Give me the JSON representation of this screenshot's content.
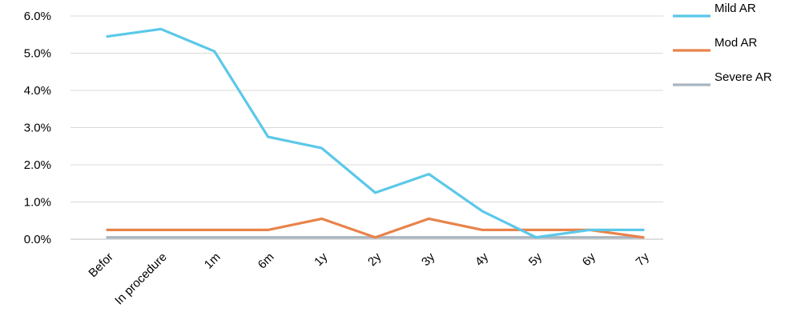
{
  "chart_data": {
    "type": "line",
    "title": "",
    "xlabel": "",
    "ylabel": "",
    "categories": [
      "Befor",
      "In procedure",
      "1m",
      "6m",
      "1y",
      "2y",
      "3y",
      "4y",
      "5y",
      "6y",
      "7y"
    ],
    "series": [
      {
        "name": "Mild AR",
        "color": "#5bc8e8",
        "values": [
          5.45,
          5.65,
          5.05,
          2.75,
          2.45,
          1.25,
          1.75,
          0.75,
          0.05,
          0.25,
          0.25
        ]
      },
      {
        "name": "Mod AR",
        "color": "#e8834a",
        "values": [
          0.25,
          0.25,
          0.25,
          0.25,
          0.55,
          0.05,
          0.55,
          0.25,
          0.25,
          0.25,
          0.05
        ]
      },
      {
        "name": "Severe AR",
        "color": "#a9b6c0",
        "values": [
          0.05,
          0.05,
          0.05,
          0.05,
          0.05,
          0.05,
          0.05,
          0.05,
          0.05,
          0.05,
          0.05
        ]
      }
    ],
    "ylim": [
      0,
      6
    ],
    "yticks": [
      0,
      1,
      2,
      3,
      4,
      5,
      6
    ],
    "ytick_labels": [
      "0.0%",
      "1.0%",
      "2.0%",
      "3.0%",
      "4.0%",
      "5.0%",
      "6.0%"
    ],
    "grid": true,
    "legend": "right"
  }
}
